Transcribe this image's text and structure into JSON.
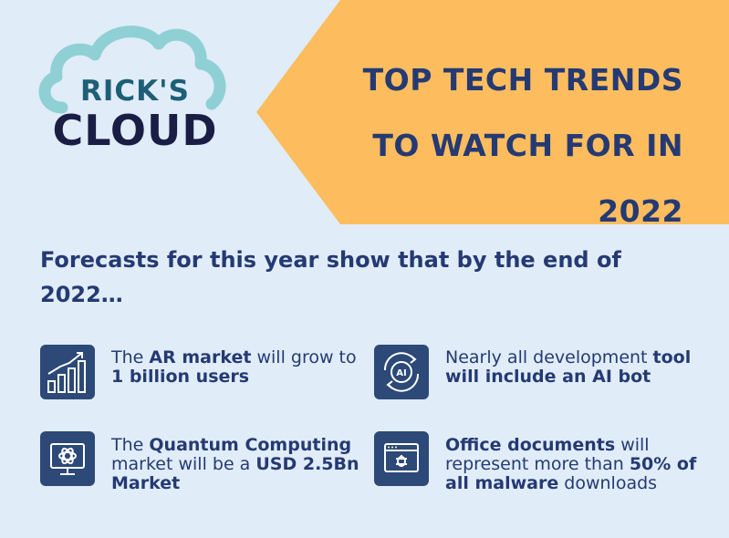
{
  "banner": {
    "lines": [
      "TOP TECH TRENDS",
      "TO WATCH FOR IN",
      "2022"
    ],
    "color": "#fdbd5e"
  },
  "logo": {
    "top": "RICK'S",
    "bottom": "CLOUD"
  },
  "headline": "Forecasts for this year show that by the end of 2022…",
  "trends": [
    {
      "icon": "bar-chart-icon",
      "parts": [
        {
          "t": "The ",
          "b": false
        },
        {
          "t": "AR market",
          "b": true
        },
        {
          "t": " will grow to ",
          "b": false
        },
        {
          "t": "1 billion users",
          "b": true
        }
      ]
    },
    {
      "icon": "ai-cycle-icon",
      "icon_label": "AI",
      "parts": [
        {
          "t": "Nearly all  development ",
          "b": false
        },
        {
          "t": "tool will include an AI bot",
          "b": true
        }
      ]
    },
    {
      "icon": "quantum-monitor-icon",
      "parts": [
        {
          "t": "The ",
          "b": false
        },
        {
          "t": "Quantum Computing",
          "b": true
        },
        {
          "t": " market  will be a ",
          "b": false
        },
        {
          "t": "USD 2.5Bn Market",
          "b": true
        }
      ]
    },
    {
      "icon": "malware-window-icon",
      "parts": [
        {
          "t": "Office documents",
          "b": true
        },
        {
          "t": " will represent more than ",
          "b": false
        },
        {
          "t": "50% of all malware",
          "b": true
        },
        {
          "t": " downloads",
          "b": false
        }
      ]
    }
  ]
}
